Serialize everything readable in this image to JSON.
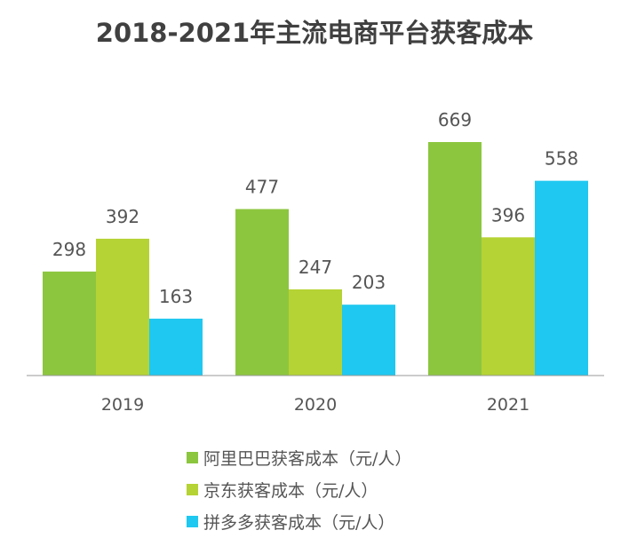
{
  "chart_data": {
    "type": "bar",
    "title": "2018-2021年主流电商平台获客成本",
    "categories": [
      "2019",
      "2020",
      "2021"
    ],
    "series": [
      {
        "name": "阿里巴巴获客成本（元/人）",
        "color": "#8cc63f",
        "values": [
          298,
          477,
          669
        ]
      },
      {
        "name": "京东获客成本（元/人）",
        "color": "#b5d334",
        "values": [
          392,
          247,
          396
        ]
      },
      {
        "name": "拼多多获客成本（元/人）",
        "color": "#1fc8f0",
        "values": [
          163,
          203,
          558
        ]
      }
    ],
    "ylim": [
      0,
      700
    ],
    "grid": false,
    "legend": "bottom"
  }
}
